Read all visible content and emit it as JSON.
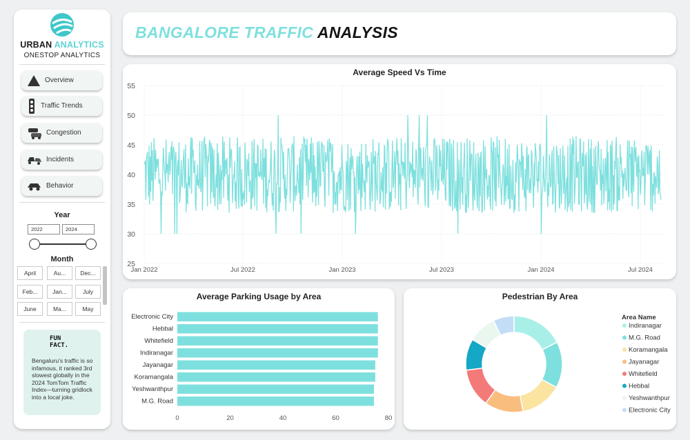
{
  "brand": {
    "name_part1": "URBAN",
    "name_part2": "ANALYTICS",
    "subtitle": "ONESTOP ANALYTICS"
  },
  "nav": [
    {
      "label": "Overview",
      "icon": "warning-sign-icon"
    },
    {
      "label": "Traffic Trends",
      "icon": "traffic-light-icon"
    },
    {
      "label": "Congestion",
      "icon": "congestion-cars-icon"
    },
    {
      "label": "Incidents",
      "icon": "car-crash-icon"
    },
    {
      "label": "Behavior",
      "icon": "car-behavior-icon"
    }
  ],
  "filters": {
    "year_title": "Year",
    "year_from": "2022",
    "year_to": "2024",
    "month_title": "Month",
    "months": [
      "April",
      "Au...",
      "Dec...",
      "Feb...",
      "Jan...",
      "July",
      "June",
      "Ma...",
      "May"
    ]
  },
  "fun_fact": {
    "title_line1": "FUN",
    "title_line2": "FACT.",
    "text": "Bengaluru's traffic is so infamous, it ranked 3rd slowest globally in the 2024 TomTom Traffic Index—turning gridlock into a local joke."
  },
  "header": {
    "title_part1": "BANGALORE TRAFFIC",
    "title_part2": "ANALYSIS"
  },
  "colors": {
    "accent": "#7ee0de",
    "bar": "#7ee0de",
    "line": "#7ee0de"
  },
  "chart_data": [
    {
      "type": "line",
      "title": "Average Speed Vs Time",
      "x_ticks": [
        "Jan 2022",
        "Jul 2022",
        "Jan 2023",
        "Jul 2023",
        "Jan 2024",
        "Jul 2024"
      ],
      "x_range": [
        "2022-01-01",
        "2024-08-09"
      ],
      "ylim": [
        25,
        55
      ],
      "y_ticks": [
        25,
        30,
        35,
        40,
        45,
        50,
        55
      ],
      "series": [
        {
          "values_summary": "daily average speed fluctuating mostly between 33 and 46, mean about 40",
          "mean": 40,
          "min": 26,
          "max": 52.5
        }
      ],
      "grid": true
    },
    {
      "type": "bar",
      "orientation": "horizontal",
      "title": "Average Parking Usage by Area",
      "categories": [
        "Electronic City",
        "Hebbal",
        "Whitefield",
        "Indiranagar",
        "Jayanagar",
        "Koramangala",
        "Yeshwanthpur",
        "M.G. Road"
      ],
      "values": [
        76,
        76,
        76,
        76,
        75,
        75,
        74.5,
        74.5
      ],
      "xlim": [
        0,
        80
      ],
      "x_ticks": [
        0,
        20,
        40,
        60,
        80
      ],
      "grid": false
    },
    {
      "type": "pie",
      "donut": true,
      "title": "Pedestrian By Area",
      "legend_title": "Area Name",
      "legend_position": "right",
      "categories": [
        "Indiranagar",
        "M.G. Road",
        "Koramangala",
        "Jayanagar",
        "Whitefield",
        "Hebbal",
        "Yeshwanthpur",
        "Electronic City"
      ],
      "values": [
        17.5,
        15.5,
        14,
        13,
        13,
        10.5,
        9.5,
        7
      ],
      "colors": [
        "#a8efe8",
        "#7ee0de",
        "#fbe3a0",
        "#f9bd7e",
        "#f47a7a",
        "#14a8c6",
        "#eaf7ef",
        "#c4ddf7"
      ]
    }
  ]
}
